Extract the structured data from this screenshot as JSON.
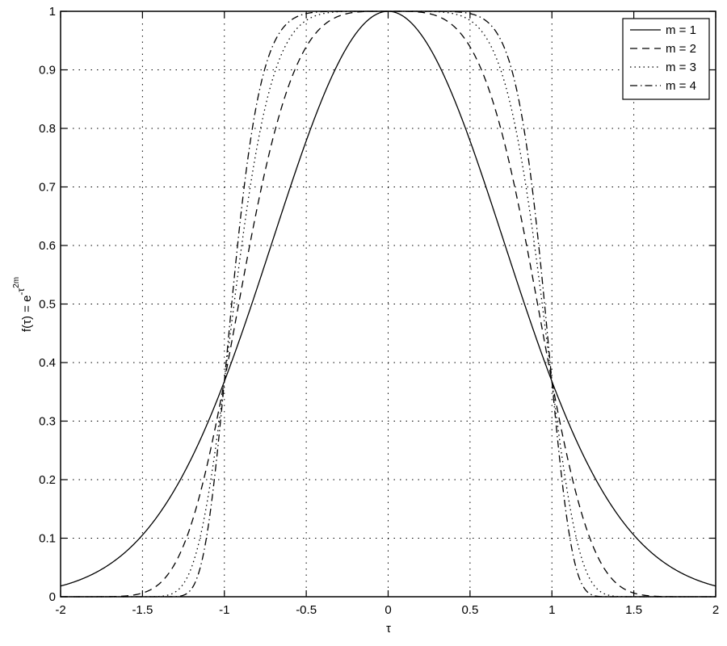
{
  "chart_data": {
    "type": "line",
    "title": "",
    "xlabel": "τ",
    "ylabel": "f(τ) = e^{-τ^{2m}}",
    "ylabel_parts": {
      "base": "f(τ) = e",
      "sup": "-τ",
      "supsup": "2m"
    },
    "xlim": [
      -2,
      2
    ],
    "ylim": [
      0,
      1
    ],
    "grid": true,
    "grid_style": "dotted",
    "legend_position": "upper right",
    "xticks": [
      -2,
      -1.5,
      -1,
      -0.5,
      0,
      0.5,
      1,
      1.5,
      2
    ],
    "xtick_labels": [
      "-2",
      "-1.5",
      "-1",
      "-0.5",
      "0",
      "0.5",
      "1",
      "1.5",
      "2"
    ],
    "yticks": [
      0,
      0.1,
      0.2,
      0.3,
      0.4,
      0.5,
      0.6,
      0.7,
      0.8,
      0.9,
      1
    ],
    "ytick_labels": [
      "0",
      "0.1",
      "0.2",
      "0.3",
      "0.4",
      "0.5",
      "0.6",
      "0.7",
      "0.8",
      "0.9",
      "1"
    ],
    "function": "exp(-tau^(2m))",
    "series": [
      {
        "name": "m = 1",
        "m": 1,
        "style": "solid",
        "x": [
          -2,
          -1.5,
          -1,
          -0.5,
          0,
          0.5,
          1,
          1.5,
          2
        ],
        "values": [
          0.018,
          0.105,
          0.368,
          0.779,
          1.0,
          0.779,
          0.368,
          0.105,
          0.018
        ]
      },
      {
        "name": "m = 2",
        "m": 2,
        "style": "dashed",
        "x": [
          -2,
          -1.5,
          -1,
          -0.5,
          0,
          0.5,
          1,
          1.5,
          2
        ],
        "values": [
          0.0,
          0.006,
          0.368,
          0.939,
          1.0,
          0.939,
          0.368,
          0.006,
          0.0
        ]
      },
      {
        "name": "m = 3",
        "m": 3,
        "style": "dotted",
        "x": [
          -2,
          -1.5,
          -1,
          -0.5,
          0,
          0.5,
          1,
          1.5,
          2
        ],
        "values": [
          0.0,
          0.0,
          0.368,
          0.984,
          1.0,
          0.984,
          0.368,
          0.0,
          0.0
        ]
      },
      {
        "name": "m = 4",
        "m": 4,
        "style": "dashdot",
        "x": [
          -2,
          -1.5,
          -1,
          -0.5,
          0,
          0.5,
          1,
          1.5,
          2
        ],
        "values": [
          0.0,
          0.0,
          0.368,
          0.996,
          1.0,
          0.996,
          0.368,
          0.0,
          0.0
        ]
      }
    ]
  },
  "colors": {
    "line": "#000000",
    "grid": "#000000",
    "background": "#ffffff"
  }
}
